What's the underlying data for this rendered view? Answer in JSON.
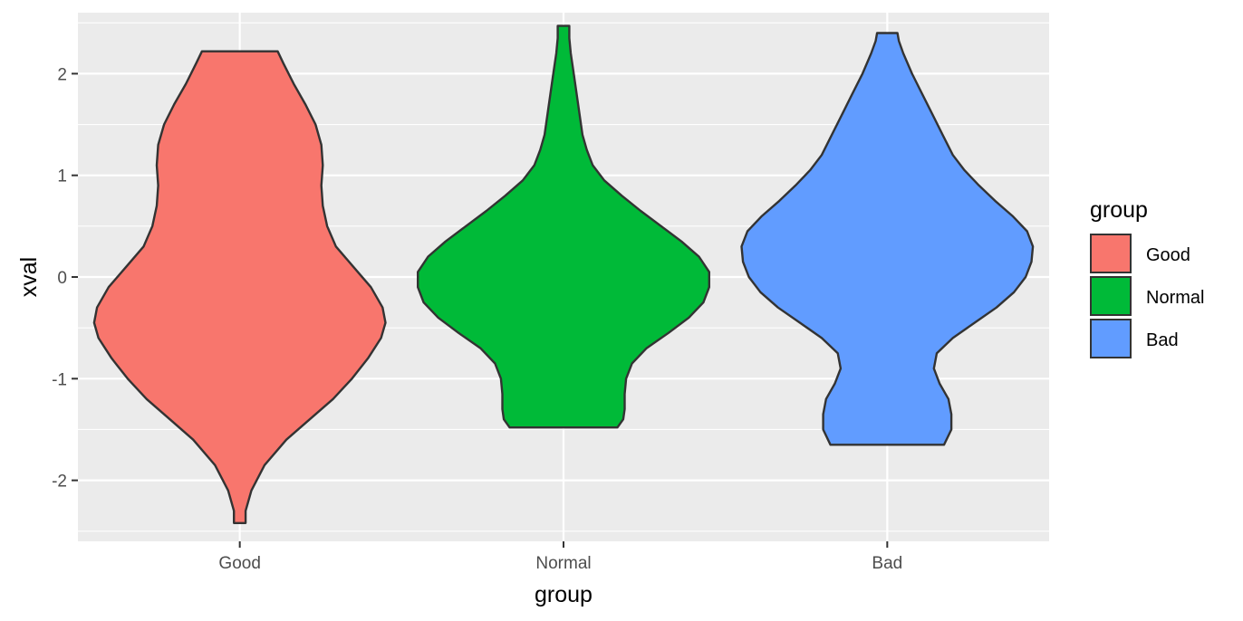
{
  "chart_data": {
    "type": "violin",
    "xlabel": "group",
    "ylabel": "xval",
    "categories": [
      "Good",
      "Normal",
      "Bad"
    ],
    "ylim": [
      -2.6,
      2.6
    ],
    "yticks": [
      -2,
      -1,
      0,
      1,
      2
    ],
    "grid": true,
    "legend": {
      "title": "group",
      "position": "right",
      "entries": [
        "Good",
        "Normal",
        "Bad"
      ]
    },
    "colors": {
      "Good": "#F8766D",
      "Normal": "#00BA38",
      "Bad": "#619CFF",
      "panel": "#EBEBEB",
      "outline": "#333333"
    },
    "series": [
      {
        "name": "Good",
        "min": -2.42,
        "max": 2.22,
        "density": [
          [
            -2.42,
            0.04
          ],
          [
            -2.3,
            0.04
          ],
          [
            -2.1,
            0.08
          ],
          [
            -1.85,
            0.17
          ],
          [
            -1.6,
            0.32
          ],
          [
            -1.4,
            0.48
          ],
          [
            -1.2,
            0.64
          ],
          [
            -1.0,
            0.77
          ],
          [
            -0.8,
            0.88
          ],
          [
            -0.6,
            0.97
          ],
          [
            -0.45,
            1.0
          ],
          [
            -0.3,
            0.98
          ],
          [
            -0.1,
            0.9
          ],
          [
            0.1,
            0.78
          ],
          [
            0.3,
            0.66
          ],
          [
            0.5,
            0.6
          ],
          [
            0.7,
            0.57
          ],
          [
            0.9,
            0.56
          ],
          [
            1.1,
            0.57
          ],
          [
            1.3,
            0.56
          ],
          [
            1.5,
            0.52
          ],
          [
            1.7,
            0.45
          ],
          [
            1.9,
            0.37
          ],
          [
            2.1,
            0.3
          ],
          [
            2.22,
            0.26
          ]
        ]
      },
      {
        "name": "Normal",
        "min": -1.48,
        "max": 2.47,
        "density": [
          [
            -1.48,
            0.37
          ],
          [
            -1.4,
            0.41
          ],
          [
            -1.3,
            0.42
          ],
          [
            -1.15,
            0.42
          ],
          [
            -1.0,
            0.43
          ],
          [
            -0.85,
            0.47
          ],
          [
            -0.7,
            0.57
          ],
          [
            -0.55,
            0.72
          ],
          [
            -0.4,
            0.86
          ],
          [
            -0.25,
            0.96
          ],
          [
            -0.1,
            1.0
          ],
          [
            0.05,
            1.0
          ],
          [
            0.2,
            0.93
          ],
          [
            0.35,
            0.81
          ],
          [
            0.5,
            0.67
          ],
          [
            0.65,
            0.53
          ],
          [
            0.8,
            0.4
          ],
          [
            0.95,
            0.28
          ],
          [
            1.1,
            0.2
          ],
          [
            1.25,
            0.16
          ],
          [
            1.4,
            0.13
          ],
          [
            1.6,
            0.11
          ],
          [
            1.8,
            0.09
          ],
          [
            2.0,
            0.07
          ],
          [
            2.2,
            0.05
          ],
          [
            2.35,
            0.04
          ],
          [
            2.47,
            0.04
          ]
        ]
      },
      {
        "name": "Bad",
        "min": -1.65,
        "max": 2.4,
        "density": [
          [
            -1.65,
            0.39
          ],
          [
            -1.5,
            0.44
          ],
          [
            -1.35,
            0.44
          ],
          [
            -1.2,
            0.42
          ],
          [
            -1.05,
            0.36
          ],
          [
            -0.9,
            0.32
          ],
          [
            -0.75,
            0.34
          ],
          [
            -0.6,
            0.45
          ],
          [
            -0.45,
            0.6
          ],
          [
            -0.3,
            0.75
          ],
          [
            -0.15,
            0.87
          ],
          [
            0.0,
            0.95
          ],
          [
            0.15,
            0.99
          ],
          [
            0.3,
            1.0
          ],
          [
            0.45,
            0.96
          ],
          [
            0.6,
            0.86
          ],
          [
            0.75,
            0.74
          ],
          [
            0.9,
            0.63
          ],
          [
            1.05,
            0.53
          ],
          [
            1.2,
            0.45
          ],
          [
            1.4,
            0.38
          ],
          [
            1.6,
            0.31
          ],
          [
            1.8,
            0.24
          ],
          [
            2.0,
            0.17
          ],
          [
            2.2,
            0.11
          ],
          [
            2.32,
            0.08
          ],
          [
            2.4,
            0.07
          ]
        ]
      }
    ]
  }
}
